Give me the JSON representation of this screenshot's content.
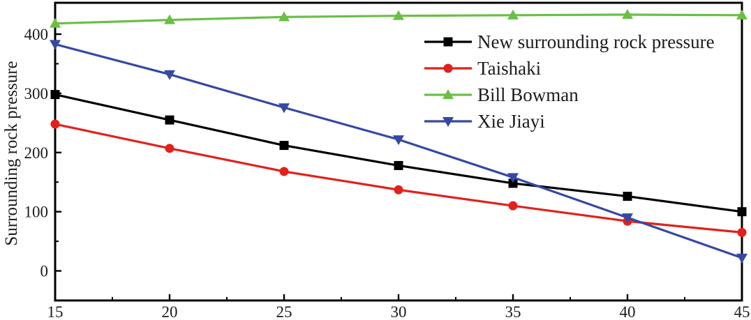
{
  "figure": {
    "background": "#ffffff",
    "axis_color": "#000000",
    "text_color": "#1c1c1c"
  },
  "chart_data": {
    "type": "line",
    "title": "",
    "xlabel": "",
    "ylabel": "Surrounding rock pressure",
    "x": [
      15,
      20,
      25,
      30,
      35,
      40,
      45
    ],
    "x_ticks": [
      15,
      20,
      25,
      30,
      35,
      40,
      45
    ],
    "x_minor_ticks": [
      17.5,
      22.5,
      27.5,
      32.5,
      37.5,
      42.5
    ],
    "y_ticks": [
      0,
      100,
      200,
      300,
      400
    ],
    "y_minor_ticks": [
      50,
      150,
      250,
      350
    ],
    "xlim": [
      15,
      45
    ],
    "ylim": [
      -50,
      453
    ],
    "grid": false,
    "legend_position": "upper-right-inside",
    "series": [
      {
        "name": "New surrounding rock pressure",
        "color": "#000000",
        "marker": "square",
        "values": [
          298,
          255,
          212,
          178,
          148,
          126,
          100
        ]
      },
      {
        "name": "Taishaki",
        "color": "#e2211c",
        "marker": "circle",
        "values": [
          248,
          207,
          168,
          137,
          110,
          84,
          65
        ]
      },
      {
        "name": "Bill Bowman",
        "color": "#6abf45",
        "marker": "triangle-up",
        "values": [
          418,
          424,
          429,
          431,
          432,
          433,
          432
        ]
      },
      {
        "name": "Xie Jiayi",
        "color": "#3548a2",
        "marker": "triangle-down",
        "values": [
          383,
          332,
          276,
          222,
          158,
          90,
          22
        ]
      }
    ]
  }
}
